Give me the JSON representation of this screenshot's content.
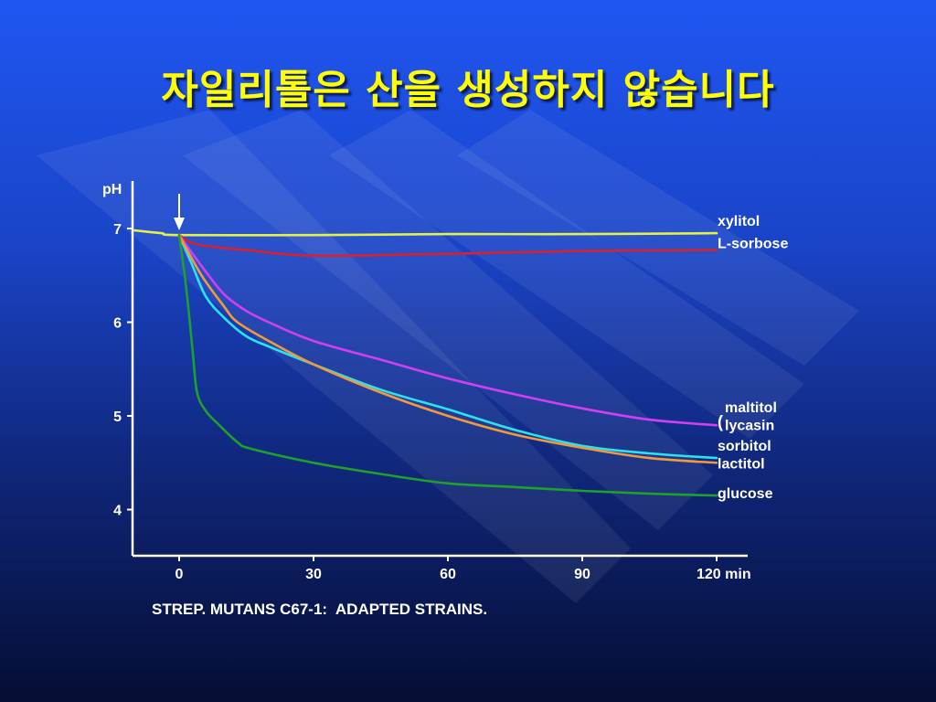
{
  "slide": {
    "title": "자일리톨은 산을 생성하지 않습니다",
    "caption": "STREP. MUTANS C67-1:  ADAPTED STRAINS."
  },
  "chart_data": {
    "type": "line",
    "ylabel": "pH",
    "xlabel": "min",
    "xlim": [
      -4,
      120
    ],
    "ylim": [
      3.5,
      7.5
    ],
    "x_ticks": [
      0,
      30,
      60,
      90,
      120
    ],
    "x_tick_labels": [
      "0",
      "30",
      "60",
      "90",
      "120 min"
    ],
    "y_ticks": [
      4,
      5,
      6,
      7
    ],
    "y_tick_labels": [
      "4",
      "5",
      "6",
      "7"
    ],
    "marker_arrow_x": 0,
    "grid": false,
    "legend": "right, labels at line ends",
    "series": [
      {
        "name": "xylitol",
        "color": "#e6f04a",
        "x": [
          -10,
          -4,
          0,
          30,
          60,
          90,
          120
        ],
        "y": [
          6.98,
          6.95,
          6.93,
          6.93,
          6.94,
          6.94,
          6.95
        ]
      },
      {
        "name": "L-sorbose",
        "color": "#d8202e",
        "x": [
          0,
          4,
          15,
          30,
          60,
          90,
          120
        ],
        "y": [
          6.93,
          6.83,
          6.77,
          6.71,
          6.73,
          6.76,
          6.77
        ]
      },
      {
        "name": "maltitol lycasin",
        "color": "#d23ff2",
        "x": [
          0,
          5,
          10,
          15,
          20,
          30,
          45,
          60,
          75,
          90,
          105,
          120
        ],
        "y": [
          6.93,
          6.6,
          6.3,
          6.12,
          6.0,
          5.8,
          5.6,
          5.4,
          5.23,
          5.08,
          4.96,
          4.9
        ]
      },
      {
        "name": "sorbitol",
        "color": "#29e3f2",
        "x": [
          0,
          3,
          6,
          10,
          15,
          20,
          30,
          45,
          60,
          75,
          90,
          105,
          120
        ],
        "y": [
          6.93,
          6.6,
          6.27,
          6.05,
          5.85,
          5.74,
          5.55,
          5.28,
          5.07,
          4.85,
          4.68,
          4.6,
          4.55
        ]
      },
      {
        "name": "lactitol",
        "color": "#f09a3c",
        "x": [
          0,
          5,
          10,
          13,
          20,
          30,
          45,
          60,
          75,
          90,
          105,
          120
        ],
        "y": [
          6.93,
          6.5,
          6.17,
          6.0,
          5.8,
          5.55,
          5.25,
          5.0,
          4.8,
          4.66,
          4.55,
          4.5
        ]
      },
      {
        "name": "glucose",
        "color": "#1ea02c",
        "x": [
          0,
          1.5,
          3,
          4,
          6,
          9,
          13,
          16,
          30,
          45,
          60,
          75,
          90,
          105,
          120
        ],
        "y": [
          6.93,
          6.4,
          5.7,
          5.25,
          5.05,
          4.9,
          4.72,
          4.65,
          4.5,
          4.38,
          4.28,
          4.24,
          4.2,
          4.17,
          4.15
        ]
      }
    ],
    "legend_labels": [
      {
        "text": "xylitol",
        "y": 7.03
      },
      {
        "text": "L-sorbose",
        "y": 6.79
      },
      {
        "text": "maltitol",
        "y": 5.04
      },
      {
        "text": "lycasin",
        "y": 4.85
      },
      {
        "text": "sorbitol",
        "y": 4.63
      },
      {
        "text": "lactitol",
        "y": 4.44
      },
      {
        "text": "glucose",
        "y": 4.12
      }
    ],
    "bracket_char": "("
  }
}
